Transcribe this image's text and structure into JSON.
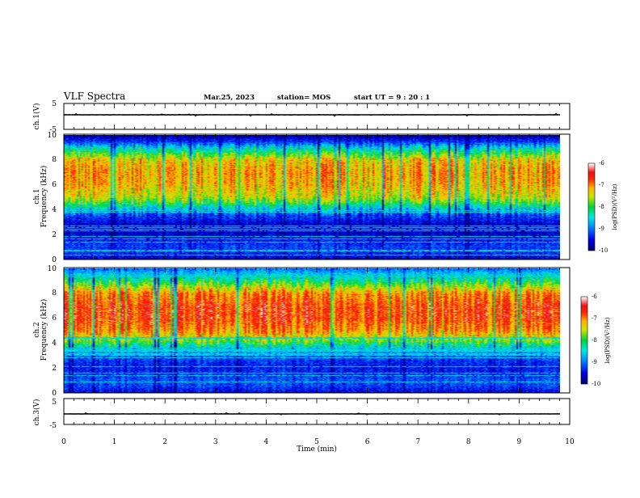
{
  "header": {
    "title": "VLF Spectra",
    "date": "Mar.25, 2023",
    "station": "station= MOS",
    "start": "start  UT =   9 : 20 : 1"
  },
  "colors": {
    "spectrum_low": "#000080",
    "spectrum_high": "#ffffff",
    "trace": "#000000"
  },
  "chart_data": [
    {
      "type": "line",
      "id": "ch1-waveform",
      "ylabel": "ch.1(V)",
      "ylim": [
        -5,
        5
      ],
      "ytick_labels": [
        "-5",
        "5"
      ],
      "values": "approximately constant near 0 V",
      "y": 0
    },
    {
      "type": "heatmap",
      "id": "ch1-spectrogram",
      "ylabel": "ch.1",
      "ylabel2": "Frequency (kHz)",
      "ylim": [
        0,
        10
      ],
      "ytick_labels": [
        "0",
        "2",
        "4",
        "6",
        "8",
        "10"
      ],
      "colorbar": {
        "label": "log(PSD)(V²/Hz)",
        "range": [
          -10,
          -6
        ],
        "tick_labels": [
          "-6",
          "-7",
          "-8",
          "-9",
          "-10"
        ]
      },
      "profile": {
        "freq_khz": [
          0,
          0.5,
          1,
          1.5,
          2,
          2.5,
          3,
          3.5,
          4,
          4.5,
          5,
          6,
          7,
          8,
          8.5,
          9,
          9.5,
          10
        ],
        "log_psd": [
          -9.6,
          -9.3,
          -9.2,
          -9.4,
          -9.6,
          -9.7,
          -9.5,
          -9.2,
          -8.6,
          -7.9,
          -7.4,
          -7.1,
          -7.0,
          -7.2,
          -7.8,
          -8.4,
          -9.3,
          -9.8
        ]
      }
    },
    {
      "type": "heatmap",
      "id": "ch2-spectrogram",
      "ylabel": "ch.2",
      "ylabel2": "Frequency (kHz)",
      "ylim": [
        0,
        10
      ],
      "ytick_labels": [
        "0",
        "2",
        "4",
        "6",
        "8",
        "10"
      ],
      "colorbar": {
        "label": "log(PSD)(V²/Hz)",
        "range": [
          -10,
          -6
        ],
        "tick_labels": [
          "-6",
          "-7",
          "-8",
          "-9",
          "-10"
        ]
      },
      "profile": {
        "freq_khz": [
          0,
          0.5,
          1,
          1.5,
          2,
          2.5,
          3,
          3.5,
          4,
          4.5,
          5,
          6,
          7,
          8,
          8.5,
          9,
          9.5,
          10
        ],
        "log_psd": [
          -9.5,
          -9.2,
          -9.1,
          -9.3,
          -9.4,
          -9.3,
          -9.0,
          -8.6,
          -7.9,
          -7.3,
          -6.9,
          -6.6,
          -6.6,
          -6.9,
          -7.4,
          -8.0,
          -8.5,
          -9.0
        ]
      }
    },
    {
      "type": "line",
      "id": "ch3-waveform",
      "ylabel": "ch.3(V)",
      "ylim": [
        -5,
        5
      ],
      "ytick_labels": [
        "-5",
        "5"
      ],
      "values": "approximately constant near 0 V",
      "y": 0
    }
  ],
  "xaxis": {
    "label": "Time (min)",
    "xlim": [
      0,
      10
    ],
    "tick_labels": [
      "0",
      "1",
      "2",
      "3",
      "4",
      "5",
      "6",
      "7",
      "8",
      "9",
      "10"
    ]
  }
}
